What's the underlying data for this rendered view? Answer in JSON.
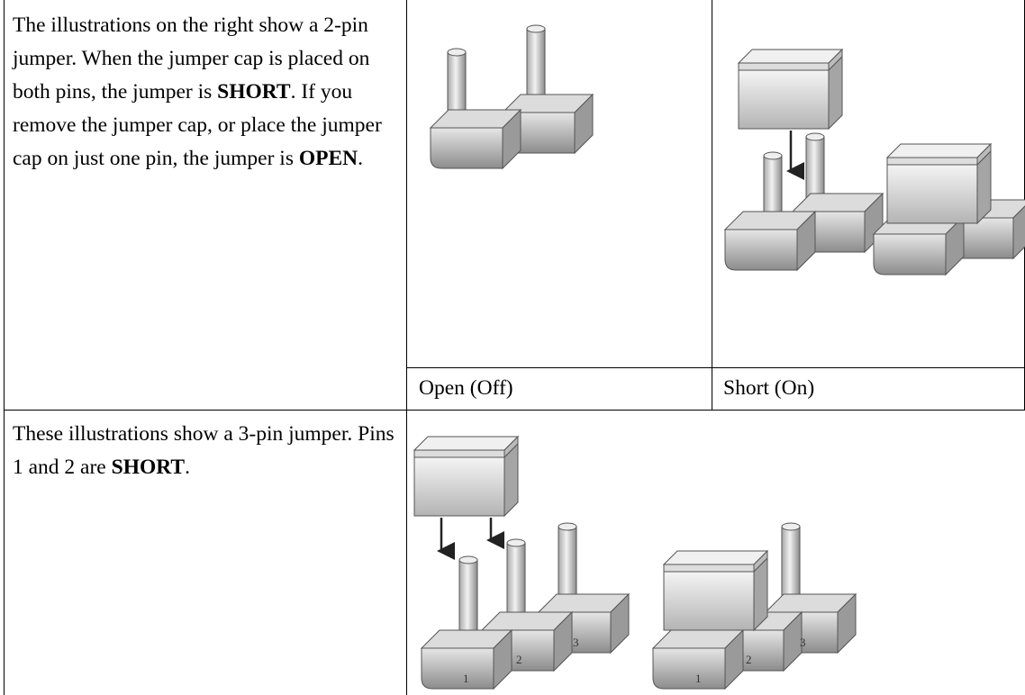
{
  "table": {
    "rows": [
      {
        "description": [
          "The illustrations on the right show a 2-pin jumper. When the jumper cap is placed on both pins, the jumper is ",
          "SHORT",
          ". If you remove the jumper cap, or place the jumper cap on just one pin, the jumper is ",
          "OPEN",
          "."
        ]
      },
      {
        "captions": [
          "Open (Off)",
          "Short (On)"
        ]
      },
      {
        "description": [
          "These illustrations show a 3-pin jumper. Pins 1 and 2 are ",
          "SHORT",
          "."
        ]
      }
    ]
  },
  "figure": {
    "pin_labels": [
      "1",
      "2",
      "3"
    ]
  }
}
